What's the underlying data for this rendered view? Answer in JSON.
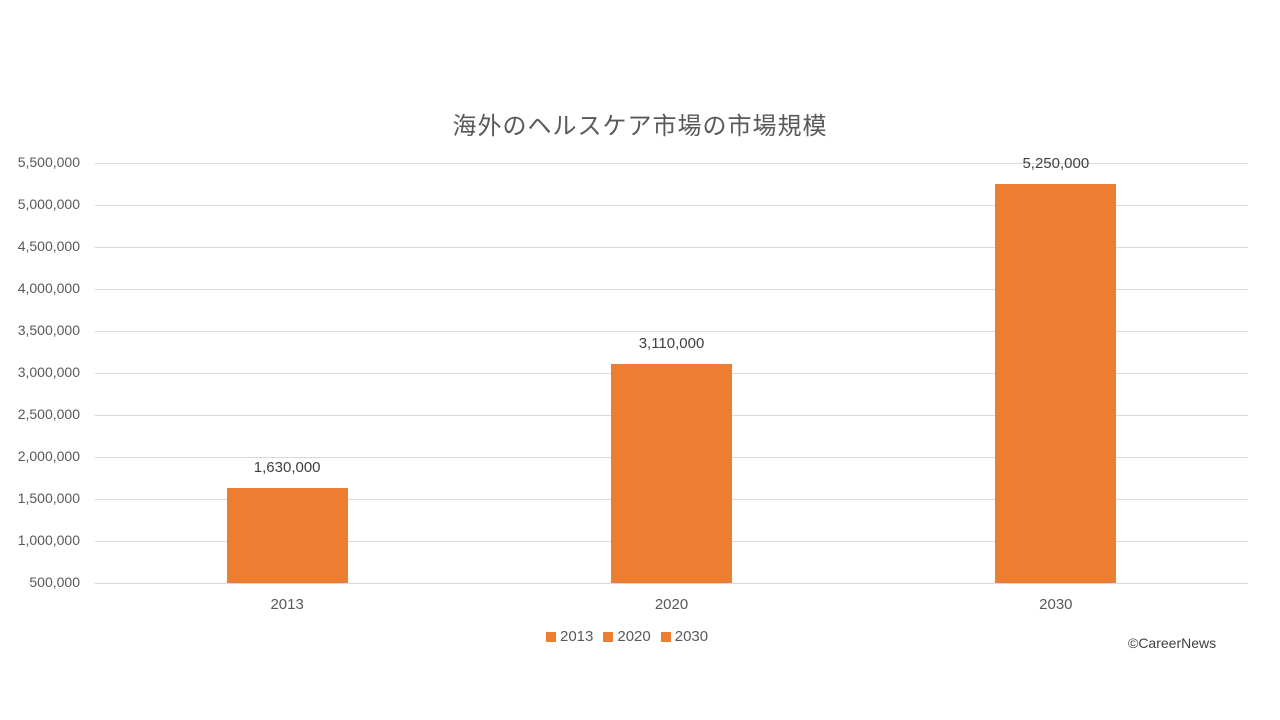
{
  "title": "海外のヘルスケア市場の市場規模",
  "credit": "©CareerNews",
  "colors": {
    "bar": "#ED7D31",
    "grid": "#d9d9d9",
    "text": "#595959"
  },
  "y_ticks": [
    "5,500,000",
    "5,000,000",
    "4,500,000",
    "4,000,000",
    "3,500,000",
    "3,000,000",
    "2,500,000",
    "2,000,000",
    "1,500,000",
    "1,000,000",
    "500,000"
  ],
  "bars": [
    {
      "category": "2013",
      "value": 1630000,
      "label": "1,630,000"
    },
    {
      "category": "2020",
      "value": 3110000,
      "label": "3,110,000"
    },
    {
      "category": "2030",
      "value": 5250000,
      "label": "5,250,000"
    }
  ],
  "legend": [
    "2013",
    "2020",
    "2030"
  ],
  "chart_data": {
    "type": "bar",
    "title": "海外のヘルスケア市場の市場規模",
    "categories": [
      "2013",
      "2020",
      "2030"
    ],
    "values": [
      1630000,
      3110000,
      5250000
    ],
    "series": [
      {
        "name": "2013",
        "values": [
          1630000,
          null,
          null
        ]
      },
      {
        "name": "2020",
        "values": [
          null,
          3110000,
          null
        ]
      },
      {
        "name": "2030",
        "values": [
          null,
          null,
          5250000
        ]
      }
    ],
    "data_labels": [
      "1,630,000",
      "3,110,000",
      "5,250,000"
    ],
    "xlabel": "",
    "ylabel": "",
    "ylim": [
      500000,
      5500000
    ],
    "y_tick_step": 500000,
    "grid": true,
    "legend_position": "bottom",
    "bar_color": "#ED7D31",
    "annotation": "©CareerNews"
  }
}
